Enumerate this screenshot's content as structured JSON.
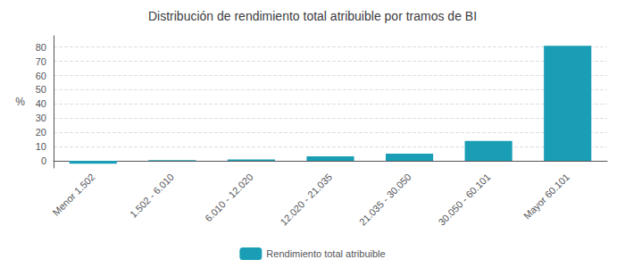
{
  "chart_data": {
    "type": "bar",
    "title": "Distribución de rendimiento total atribuible por tramos de BI",
    "categories": [
      "Menor 1.502",
      "1.502 - 6.010",
      "6.010 - 12.020",
      "12.020 - 21.035",
      "21.035 - 30.050",
      "30.050 - 60.101",
      "Mayor 60.101"
    ],
    "series": [
      {
        "name": "Rendimiento total atribuible",
        "color": "#1a9eb5",
        "values": [
          -2.0,
          0.5,
          1.0,
          3.2,
          5.0,
          14.0,
          81.0
        ]
      }
    ],
    "ylabel": "%",
    "ylim": [
      -5,
      88
    ],
    "yticks": [
      0,
      10,
      20,
      30,
      40,
      50,
      60,
      70,
      80
    ],
    "grid": true,
    "legend": "bottom"
  }
}
